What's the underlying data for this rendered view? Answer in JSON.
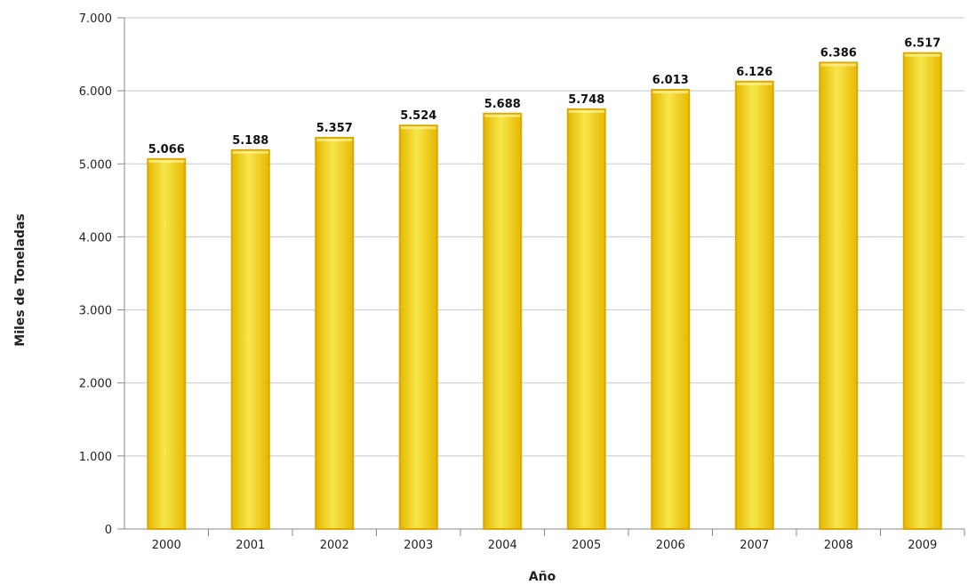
{
  "chart_data": {
    "type": "bar",
    "title": "",
    "xlabel": "Año",
    "ylabel": "Miles de Toneladas",
    "categories": [
      "2000",
      "2001",
      "2002",
      "2003",
      "2004",
      "2005",
      "2006",
      "2007",
      "2008",
      "2009"
    ],
    "values": [
      5066,
      5188,
      5357,
      5524,
      5688,
      5748,
      6013,
      6126,
      6386,
      6517
    ],
    "value_labels": [
      "5.066",
      "5.188",
      "5.357",
      "5.524",
      "5.688",
      "5.748",
      "6.013",
      "6.126",
      "6.386",
      "6.517"
    ],
    "ylim": [
      0,
      7000
    ],
    "yticks": [
      0,
      1000,
      2000,
      3000,
      4000,
      5000,
      6000,
      7000
    ],
    "ytick_labels": [
      "0",
      "1.000",
      "2.000",
      "3.000",
      "4.000",
      "5.000",
      "6.000",
      "7.000"
    ],
    "grid": true,
    "legend": false,
    "colors": {
      "bar_fill_start": "#e3b800",
      "bar_fill_mid": "#f7e64a",
      "bar_fill_end": "#e6b800",
      "bar_border": "#dca800",
      "grid": "#c8c8c8",
      "axis": "#888888"
    }
  }
}
